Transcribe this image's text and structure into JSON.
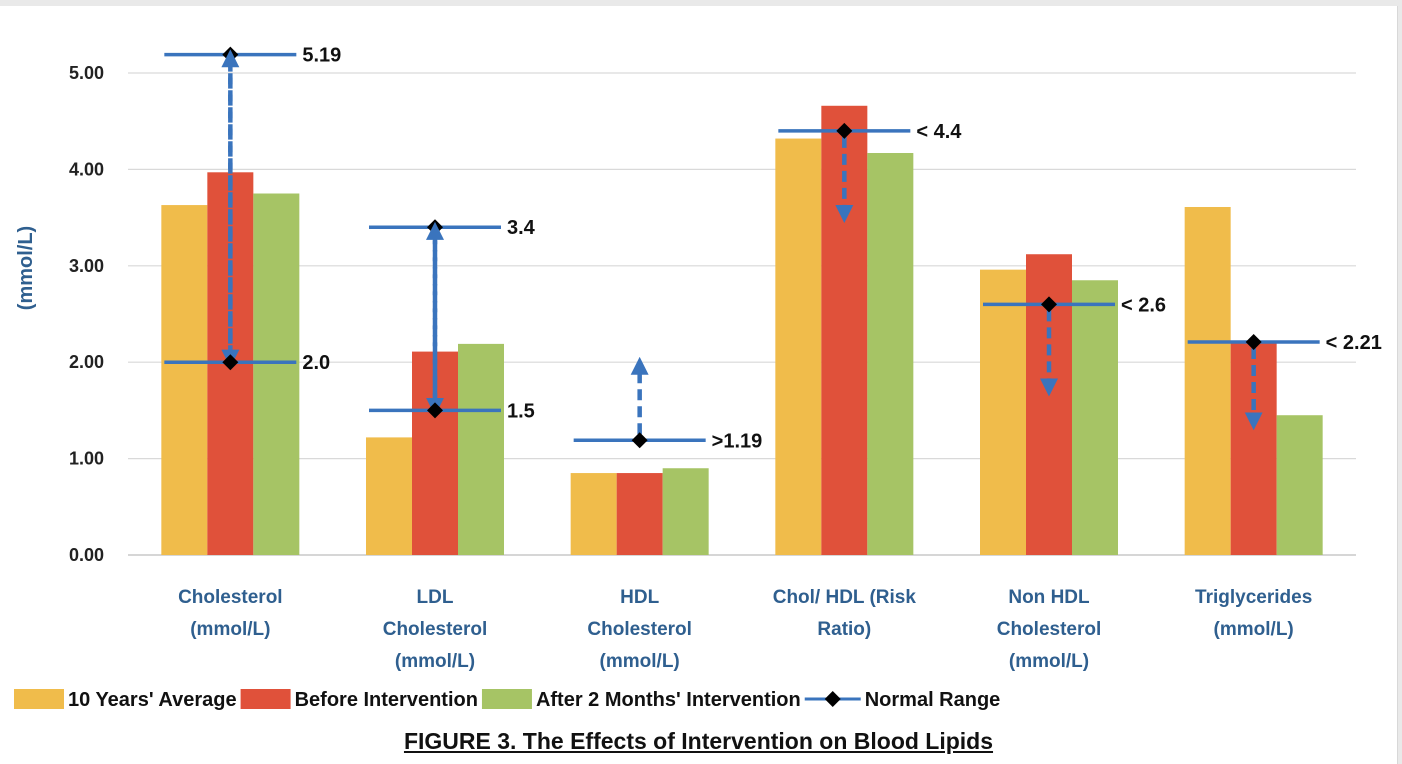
{
  "figure": {
    "caption": "FIGURE 3. The Effects of Intervention on Blood Lipids"
  },
  "chart_data": {
    "type": "bar",
    "title": "",
    "xlabel": "",
    "ylabel": "(mmol/L)",
    "ylim": [
      0,
      5.3
    ],
    "yticks": [
      "0.00",
      "1.00",
      "2.00",
      "3.00",
      "4.00",
      "5.00"
    ],
    "grid": true,
    "legend_position": "bottom",
    "categories": [
      [
        "Cholesterol",
        "(mmol/L)"
      ],
      [
        "LDL",
        "Cholesterol",
        "(mmol/L)"
      ],
      [
        "HDL",
        "Cholesterol",
        "(mmol/L)"
      ],
      [
        "Chol/ HDL (Risk",
        "Ratio)"
      ],
      [
        "Non HDL",
        "Cholesterol",
        "(mmol/L)"
      ],
      [
        "Triglycerides",
        "(mmol/L)"
      ]
    ],
    "series": [
      {
        "name": "10 Years' Average",
        "color": "#f0bc4b",
        "values": [
          3.63,
          1.22,
          0.85,
          4.32,
          2.96,
          3.61
        ]
      },
      {
        "name": "Before Intervention",
        "color": "#e0513a",
        "values": [
          3.97,
          2.11,
          0.85,
          4.66,
          3.12,
          2.21
        ]
      },
      {
        "name": "After 2 Months' Intervention",
        "color": "#a6c465",
        "values": [
          3.75,
          2.19,
          0.9,
          4.17,
          2.85,
          1.45
        ]
      }
    ],
    "normal_range": {
      "name": "Normal Range",
      "line_color": "#3a74bd",
      "marker_color": "#000000",
      "markers": [
        {
          "category": 0,
          "value": 5.19,
          "label": "5.19",
          "arrow_to": 2.0
        },
        {
          "category": 0,
          "value": 2.0,
          "label": "2.0",
          "arrow_to": 5.19
        },
        {
          "category": 1,
          "value": 3.4,
          "label": "3.4",
          "arrow_to": 1.5
        },
        {
          "category": 1,
          "value": 1.5,
          "label": "1.5",
          "arrow_to": 3.4
        },
        {
          "category": 2,
          "value": 1.19,
          "label": ">1.19",
          "arrow_to": 2.0
        },
        {
          "category": 3,
          "value": 4.4,
          "label": "< 4.4",
          "arrow_to": 3.5
        },
        {
          "category": 4,
          "value": 2.6,
          "label": "< 2.6",
          "arrow_to": 1.7
        },
        {
          "category": 5,
          "value": 2.21,
          "label": "< 2.21",
          "arrow_to": 1.35
        }
      ]
    }
  }
}
